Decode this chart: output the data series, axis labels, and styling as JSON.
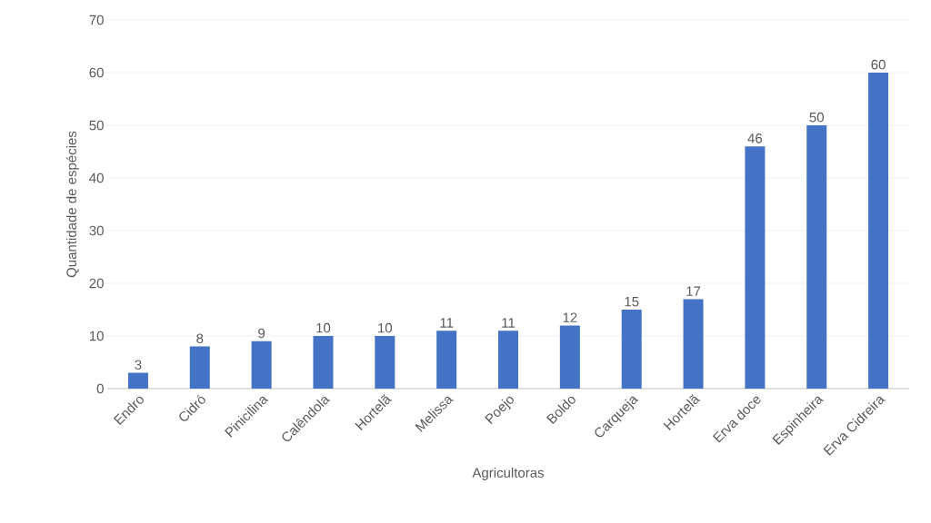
{
  "chart_data": {
    "type": "bar",
    "xlabel": "Agricultoras",
    "ylabel": "Quantidade de espécies",
    "categories": [
      "Endro",
      "Cidró",
      "Pinicilina",
      "Calêndola",
      "Hortelã",
      "Melissa",
      "Poejo",
      "Boldo",
      "Carqueja",
      "Hortelã",
      "Erva doce",
      "Espinheira",
      "Erva Cidreira"
    ],
    "values": [
      3,
      8,
      9,
      10,
      10,
      11,
      11,
      12,
      15,
      17,
      46,
      50,
      60
    ],
    "color": "#4472c4",
    "ylim": [
      0,
      70
    ],
    "yticks": [
      0,
      10,
      20,
      30,
      40,
      50,
      60,
      70
    ],
    "grid": "y",
    "data_labels": true
  }
}
